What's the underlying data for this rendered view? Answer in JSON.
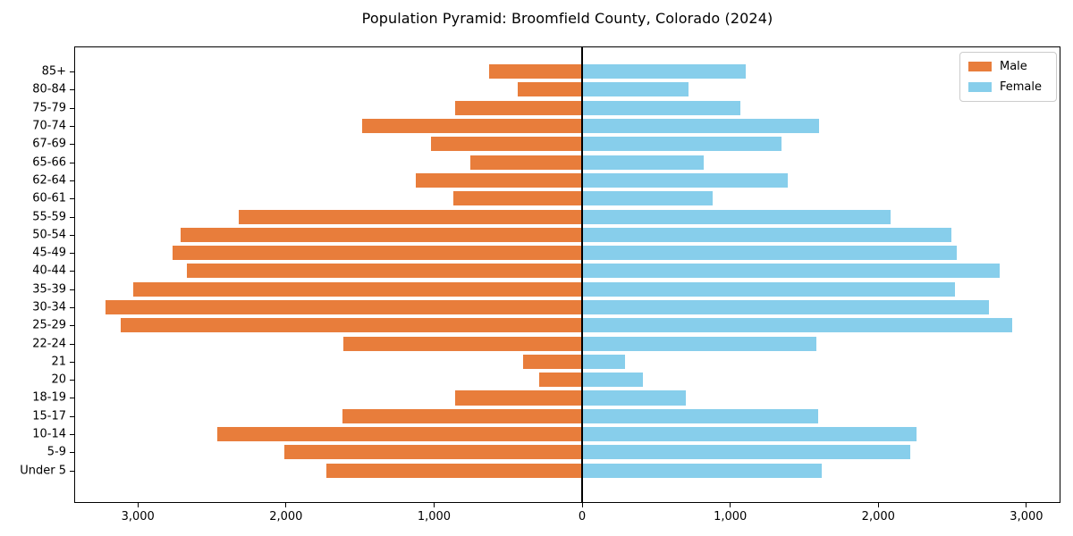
{
  "title": "Population Pyramid: Broomfield County, Colorado (2024)",
  "colors": {
    "male": "#E87D3B",
    "female": "#87CEEB",
    "axis": "#000000"
  },
  "legend": {
    "entries": [
      "Male",
      "Female"
    ],
    "position": "upper right"
  },
  "chart_data": {
    "type": "bar",
    "orientation": "horizontal-pyramid",
    "title": "Population Pyramid: Broomfield County, Colorado (2024)",
    "categories": [
      "85+",
      "80-84",
      "75-79",
      "70-74",
      "67-69",
      "65-66",
      "62-64",
      "60-61",
      "55-59",
      "50-54",
      "45-49",
      "40-44",
      "35-39",
      "30-34",
      "25-29",
      "22-24",
      "21",
      "20",
      "18-19",
      "15-17",
      "10-14",
      "5-9",
      "Under 5"
    ],
    "series": [
      {
        "name": "Male",
        "side": "left",
        "color": "#E87D3B",
        "values": [
          630,
          435,
          860,
          1490,
          1020,
          755,
          1125,
          870,
          2325,
          2715,
          2770,
          2675,
          3035,
          3225,
          3120,
          1615,
          400,
          290,
          860,
          1620,
          2470,
          2015,
          1730
        ]
      },
      {
        "name": "Female",
        "side": "right",
        "color": "#87CEEB",
        "values": [
          1105,
          720,
          1070,
          1600,
          1350,
          820,
          1390,
          885,
          2085,
          2500,
          2535,
          2825,
          2525,
          2750,
          2910,
          1585,
          290,
          410,
          700,
          1595,
          2265,
          2220,
          1620
        ]
      }
    ],
    "x_tick_values": [
      -3000,
      -2000,
      -1000,
      0,
      1000,
      2000,
      3000
    ],
    "x_tick_labels": [
      "3,000",
      "2,000",
      "1,000",
      "0",
      "1,000",
      "2,000",
      "3,000"
    ],
    "xlim": [
      -3430,
      3230
    ],
    "grid": false,
    "zero_line": true,
    "legend_position": "upper right"
  }
}
